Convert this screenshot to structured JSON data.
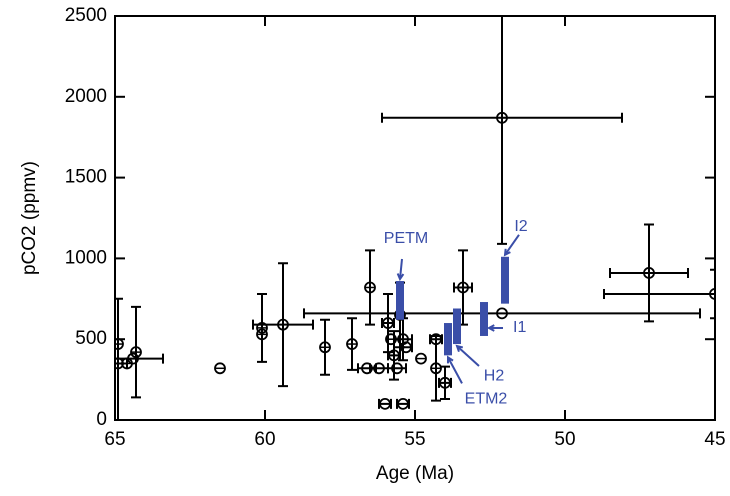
{
  "chart_data": {
    "type": "errorbar-scatter",
    "xlabel": "Age (Ma)",
    "ylabel": "pCO2 (ppmv)",
    "xlim": [
      65,
      45
    ],
    "ylim": [
      0,
      2500
    ],
    "xticks": [
      65,
      60,
      55,
      50,
      45
    ],
    "yticks": [
      0,
      500,
      1000,
      1500,
      2000,
      2500
    ],
    "color": "#000000",
    "x": [
      64.9,
      64.9,
      64.6,
      64.4,
      64.3,
      61.5,
      60.1,
      60.1,
      59.4,
      58.0,
      57.1,
      56.5,
      56.6,
      56.2,
      55.9,
      55.8,
      55.7,
      55.6,
      55.5,
      55.4,
      55.3,
      56.0,
      55.4,
      54.8,
      54.3,
      54.3,
      54.0,
      53.4,
      52.1,
      52.1,
      47.2,
      45.0
    ],
    "y": [
      470,
      350,
      350,
      380,
      420,
      320,
      570,
      530,
      590,
      450,
      470,
      820,
      320,
      320,
      600,
      500,
      400,
      320,
      650,
      500,
      450,
      100,
      100,
      380,
      500,
      320,
      230,
      820,
      1870,
      660,
      910,
      780
    ],
    "xerr": [
      0,
      0.3,
      0,
      1.0,
      0,
      0,
      0,
      0,
      1.0,
      0,
      0,
      0,
      0.3,
      0.3,
      0.2,
      0,
      0.2,
      0.3,
      0,
      0.3,
      0.2,
      0.2,
      0.2,
      0,
      0.2,
      0,
      0.2,
      0.3,
      4.0,
      6.6,
      1.3,
      3.7
    ],
    "yerr": [
      0,
      400,
      0,
      0,
      280,
      0,
      210,
      0,
      380,
      170,
      160,
      230,
      0,
      0,
      180,
      0,
      150,
      0,
      200,
      130,
      0,
      0,
      0,
      0,
      0,
      200,
      100,
      230,
      780,
      0,
      300,
      150
    ],
    "annotations": [
      {
        "text": "PETM",
        "x": 55.5,
        "low": 620,
        "high": 860
      },
      {
        "text": "ETM2",
        "x": 53.9,
        "low": 400,
        "high": 600
      },
      {
        "text": "H2",
        "x": 53.6,
        "low": 470,
        "high": 690
      },
      {
        "text": "I1",
        "x": 52.7,
        "low": 520,
        "high": 730
      },
      {
        "text": "I2",
        "x": 52.0,
        "low": 720,
        "high": 1010
      }
    ],
    "annotation_color": "#3a4ea8"
  }
}
